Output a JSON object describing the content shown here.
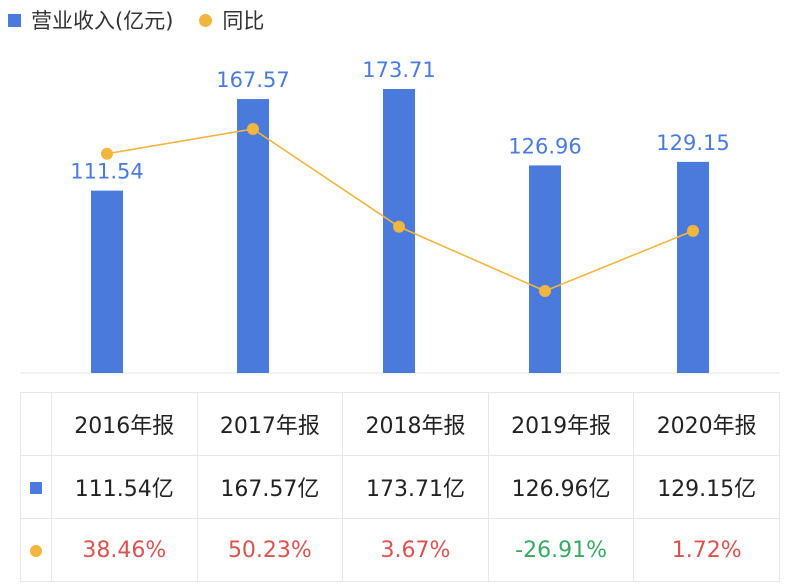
{
  "legend": {
    "bar_label": "营业收入(亿元)",
    "line_label": "同比"
  },
  "colors": {
    "bar": "#4a7bdc",
    "line": "#f0b63e",
    "bar_label": "#4a7bdc",
    "positive": "#d9534f",
    "negative": "#3aa865"
  },
  "chart_data": {
    "type": "bar",
    "categories": [
      "2016年报",
      "2017年报",
      "2018年报",
      "2019年报",
      "2020年报"
    ],
    "series": [
      {
        "name": "营业收入(亿元)",
        "type": "bar",
        "values": [
          111.54,
          167.57,
          173.71,
          126.96,
          129.15
        ],
        "labels": [
          "111.54",
          "167.57",
          "173.71",
          "126.96",
          "129.15"
        ]
      },
      {
        "name": "同比",
        "type": "line",
        "values": [
          38.46,
          50.23,
          3.67,
          -26.91,
          1.72
        ]
      }
    ]
  },
  "table": {
    "header": [
      "",
      "2016年报",
      "2017年报",
      "2018年报",
      "2019年报",
      "2020年报"
    ],
    "revenue_row": [
      "111.54亿",
      "167.57亿",
      "173.71亿",
      "126.96亿",
      "129.15亿"
    ],
    "yoy_row": [
      "38.46%",
      "50.23%",
      "3.67%",
      "-26.91%",
      "1.72%"
    ]
  }
}
